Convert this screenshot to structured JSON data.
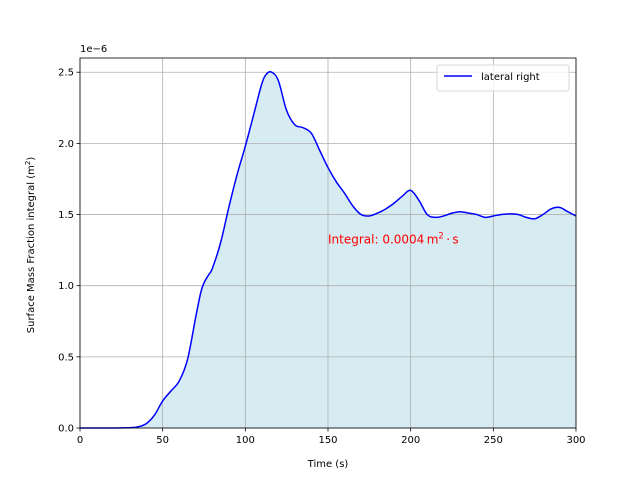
{
  "chart_data": {
    "type": "area",
    "title": "",
    "xlabel": "Time (s)",
    "ylabel_main": "Surface Mass Fraction integral (m",
    "ylabel_sup": "2",
    "ylabel_end": ")",
    "offset_text": "1e−6",
    "xlim": [
      0,
      300
    ],
    "ylim": [
      0,
      2.6
    ],
    "xticks": [
      0,
      50,
      100,
      150,
      200,
      250,
      300
    ],
    "yticks": [
      0.0,
      0.5,
      1.0,
      1.5,
      2.0,
      2.5
    ],
    "ytick_labels": [
      "0.0",
      "0.5",
      "1.0",
      "1.5",
      "2.0",
      "2.5"
    ],
    "grid": true,
    "legend_position": "top-right",
    "annotation": {
      "text_main": "Integral: 0.0004 m",
      "text_sup": "2",
      "text_end": " · s",
      "x": 150,
      "y": 1.33,
      "color": "#ff0000"
    },
    "colors": {
      "line": "#0000ff",
      "fill": "#add8e6"
    },
    "series": [
      {
        "name": "lateral right",
        "x": [
          0,
          10,
          20,
          30,
          35,
          40,
          45,
          50,
          55,
          60,
          65,
          70,
          73,
          75,
          78,
          80,
          85,
          90,
          95,
          100,
          105,
          110,
          113,
          116,
          120,
          125,
          130,
          135,
          140,
          145,
          150,
          155,
          160,
          165,
          170,
          175,
          180,
          185,
          190,
          195,
          200,
          205,
          210,
          215,
          220,
          225,
          230,
          235,
          240,
          245,
          250,
          255,
          260,
          265,
          270,
          275,
          280,
          285,
          290,
          295,
          300
        ],
        "y": [
          0,
          0,
          0,
          0.002,
          0.008,
          0.03,
          0.09,
          0.19,
          0.26,
          0.33,
          0.48,
          0.78,
          0.95,
          1.02,
          1.08,
          1.12,
          1.3,
          1.55,
          1.78,
          1.98,
          2.2,
          2.42,
          2.49,
          2.5,
          2.44,
          2.23,
          2.13,
          2.11,
          2.07,
          1.95,
          1.83,
          1.73,
          1.65,
          1.56,
          1.5,
          1.49,
          1.51,
          1.54,
          1.58,
          1.63,
          1.67,
          1.6,
          1.5,
          1.48,
          1.49,
          1.51,
          1.52,
          1.51,
          1.5,
          1.48,
          1.49,
          1.5,
          1.505,
          1.5,
          1.48,
          1.47,
          1.5,
          1.54,
          1.55,
          1.52,
          1.49
        ]
      }
    ]
  }
}
